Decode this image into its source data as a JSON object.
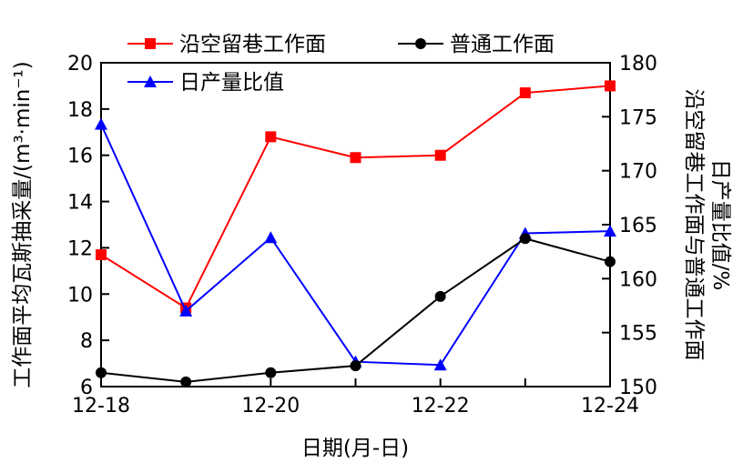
{
  "chart_data": {
    "type": "line",
    "categories": [
      "12-18",
      "12-19",
      "12-20",
      "12-21",
      "12-22",
      "12-23",
      "12-24"
    ],
    "x_tick_labels": [
      "12-18",
      "12-20",
      "12-22",
      "12-24"
    ],
    "xlabel": "日期(月-日)",
    "ylabel_left": "工作面平均瓦斯抽采量/(m³·min⁻¹)",
    "ylabel_right_line1": "沿空留巷工作面与普通工作面",
    "ylabel_right_line2": "日产量比值/%",
    "ylim_left": [
      6,
      20
    ],
    "yticks_left": [
      6,
      8,
      10,
      12,
      14,
      16,
      18,
      20
    ],
    "ylim_right": [
      150,
      180
    ],
    "yticks_right": [
      150,
      155,
      160,
      165,
      170,
      175,
      180
    ],
    "series": [
      {
        "name": "沿空留巷工作面",
        "axis": "left",
        "color": "#ff0000",
        "marker": "square",
        "values": [
          11.7,
          9.4,
          16.8,
          15.9,
          16.0,
          18.7,
          19.0
        ]
      },
      {
        "name": "普通工作面",
        "axis": "left",
        "color": "#000000",
        "marker": "circle",
        "values": [
          6.6,
          6.2,
          6.6,
          6.9,
          9.9,
          12.4,
          11.4
        ]
      },
      {
        "name": "日产量比值",
        "axis": "right",
        "color": "#0000ff",
        "marker": "triangle",
        "values": [
          174.3,
          157.0,
          163.8,
          152.3,
          152.0,
          164.2,
          164.4
        ]
      }
    ],
    "legend": "top-inside",
    "grid": false
  }
}
